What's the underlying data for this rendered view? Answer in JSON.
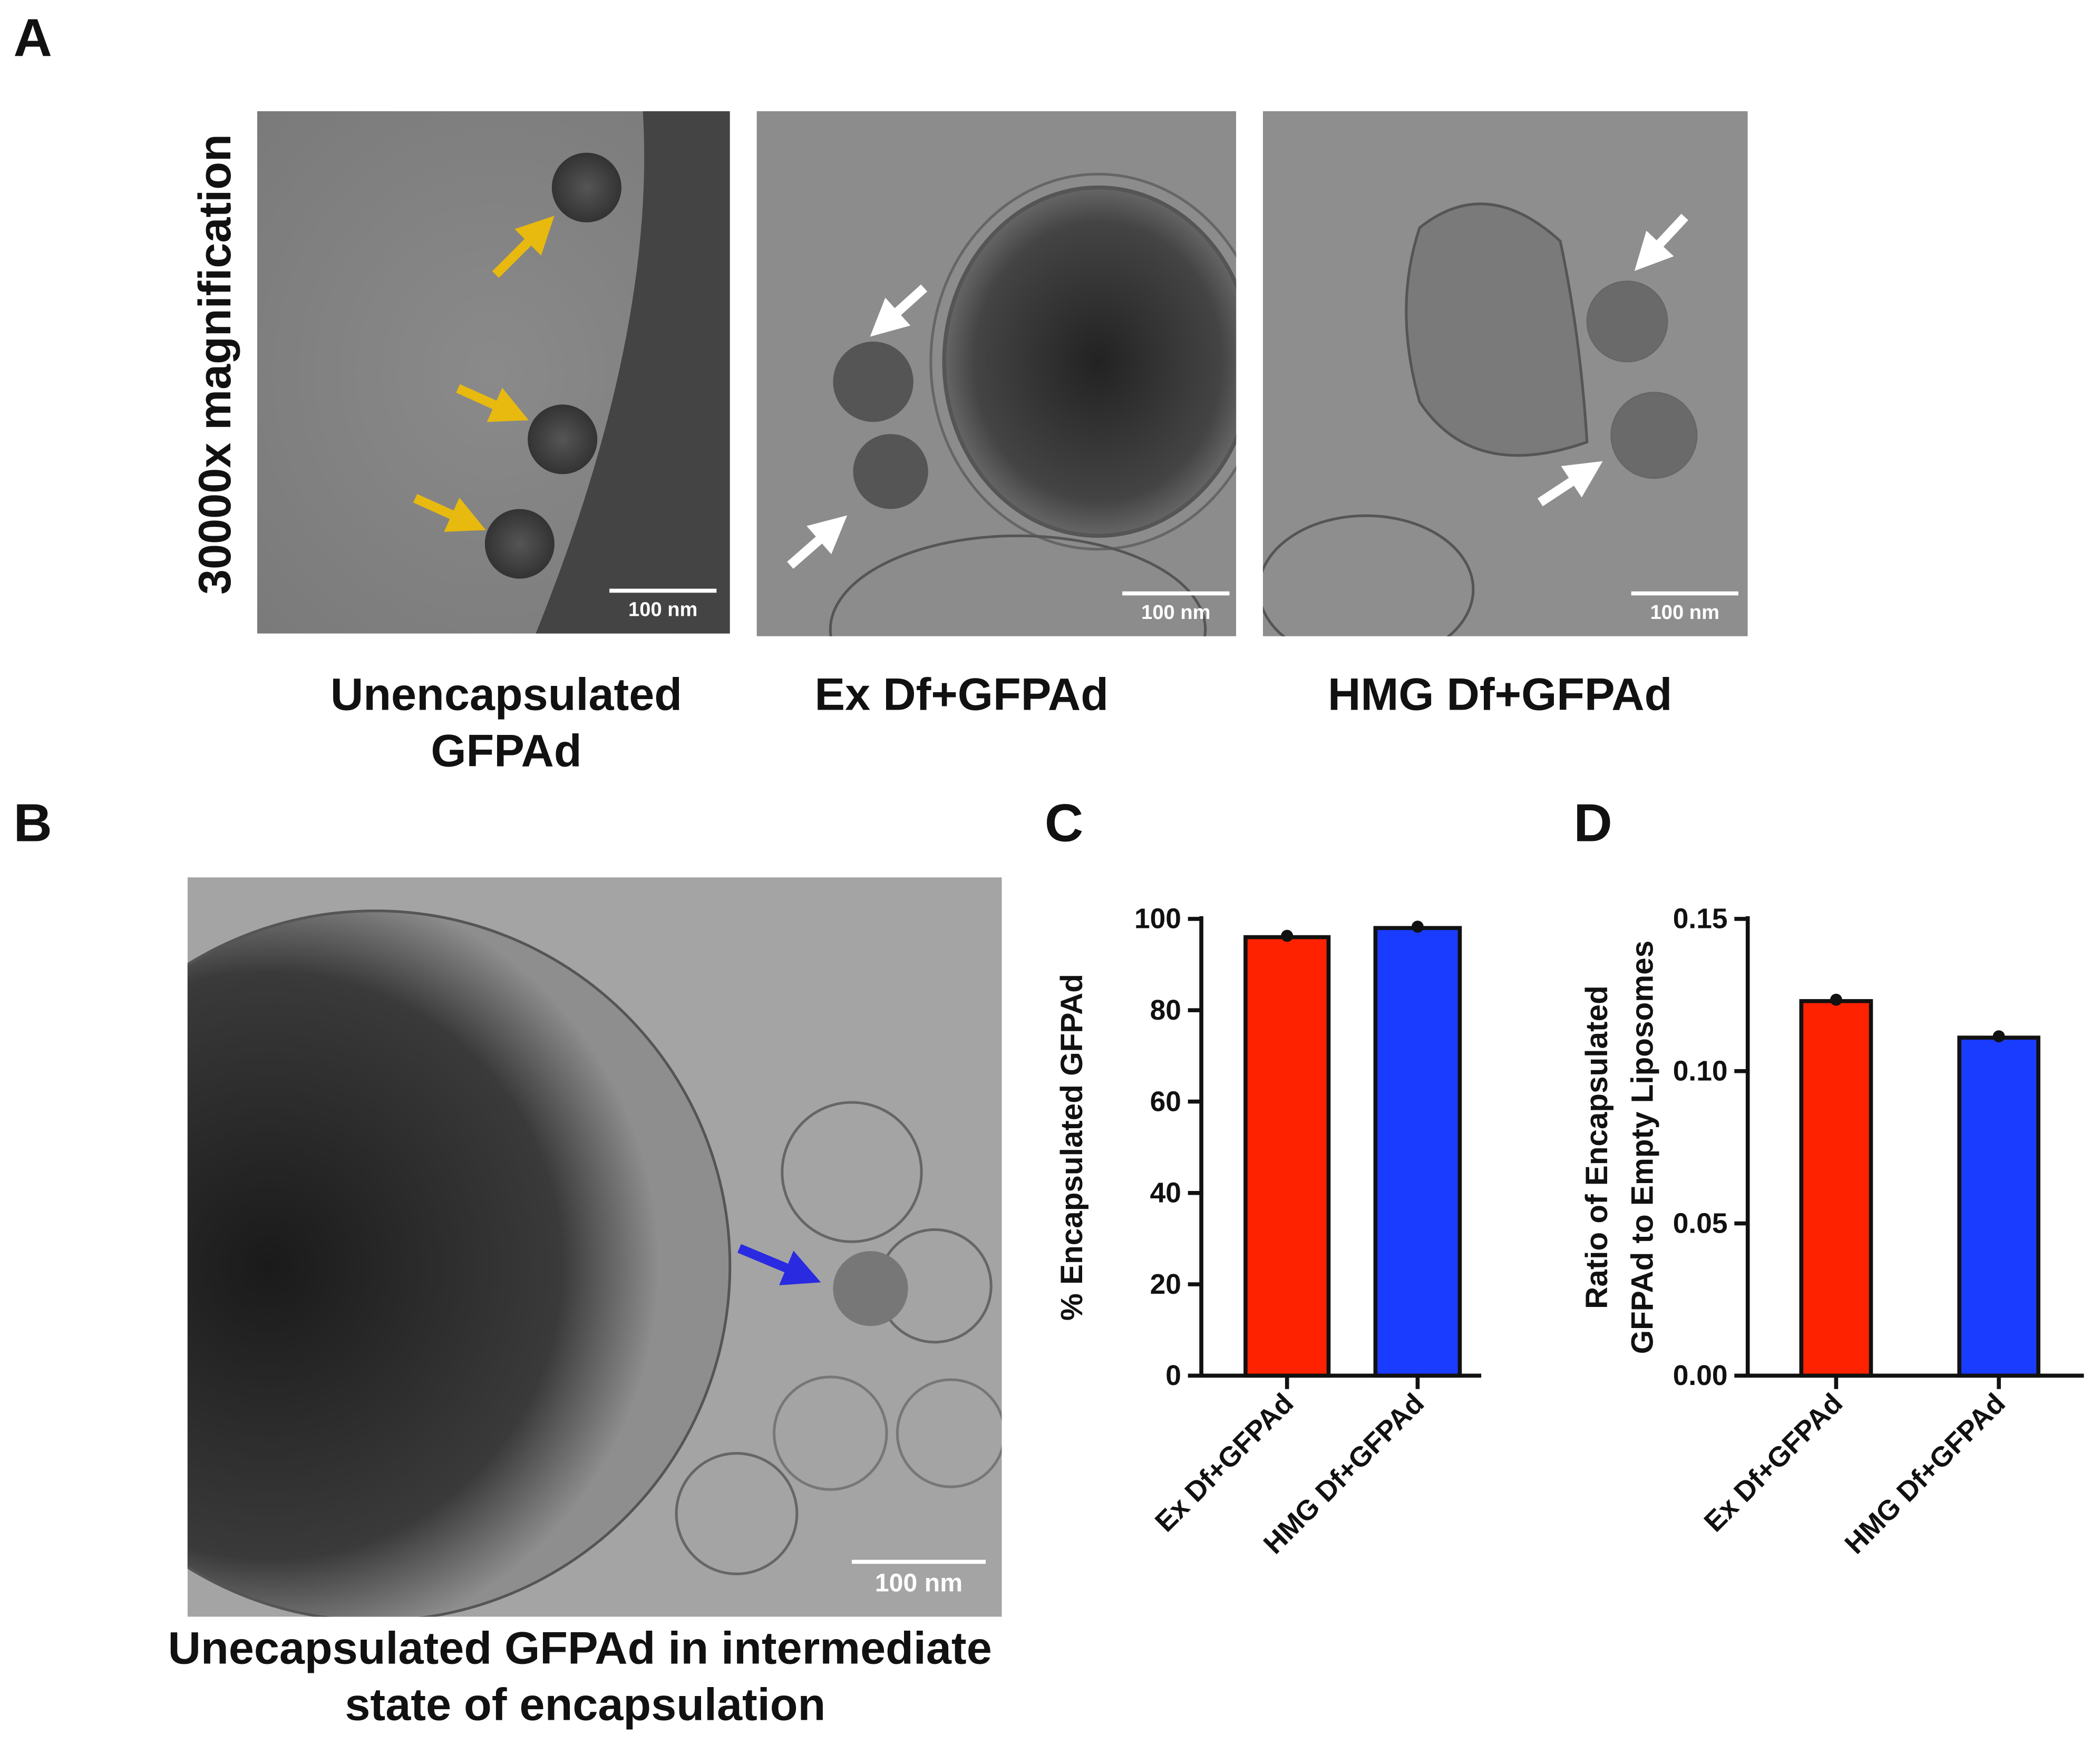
{
  "panels": {
    "A": {
      "label": "A",
      "row_label": "30000x magnification",
      "images": [
        {
          "caption": [
            "Unencapsulated",
            "GFPAd"
          ],
          "scale_bar": "100 nm"
        },
        {
          "caption": [
            "Ex Df+GFPAd"
          ],
          "scale_bar": "100 nm"
        },
        {
          "caption": [
            "HMG Df+GFPAd"
          ],
          "scale_bar": "100 nm"
        }
      ]
    },
    "B": {
      "label": "B",
      "caption": [
        "Unecapsulated GFPAd in intermediate",
        "state of encapsulation"
      ],
      "scale_bar": "100 nm"
    }
  },
  "chart_data": [
    {
      "type": "bar",
      "panel_label": "C",
      "ylabel": [
        "% Encapsulated GFPAd"
      ],
      "categories": [
        "Ex Df+GFPAd",
        "HMG Df+GFPAd"
      ],
      "values": [
        96,
        98
      ],
      "colors": [
        "#ff2200",
        "#1a3cff"
      ],
      "ylim": [
        0,
        100
      ],
      "yticks": [
        0,
        20,
        40,
        60,
        80,
        100
      ]
    },
    {
      "type": "bar",
      "panel_label": "D",
      "ylabel": [
        "Ratio of Encapsulated",
        "GFPAd to Empty Liposomes"
      ],
      "categories": [
        "Ex Df+GFPAd",
        "HMG Df+GFPAd"
      ],
      "values": [
        0.123,
        0.111
      ],
      "colors": [
        "#ff2200",
        "#1a3cff"
      ],
      "ylim": [
        0,
        0.15
      ],
      "yticks": [
        {
          "value": 0,
          "label": "0.00"
        },
        0.05,
        {
          "value": 0.1,
          "label": "0.10"
        },
        0.15
      ]
    }
  ]
}
